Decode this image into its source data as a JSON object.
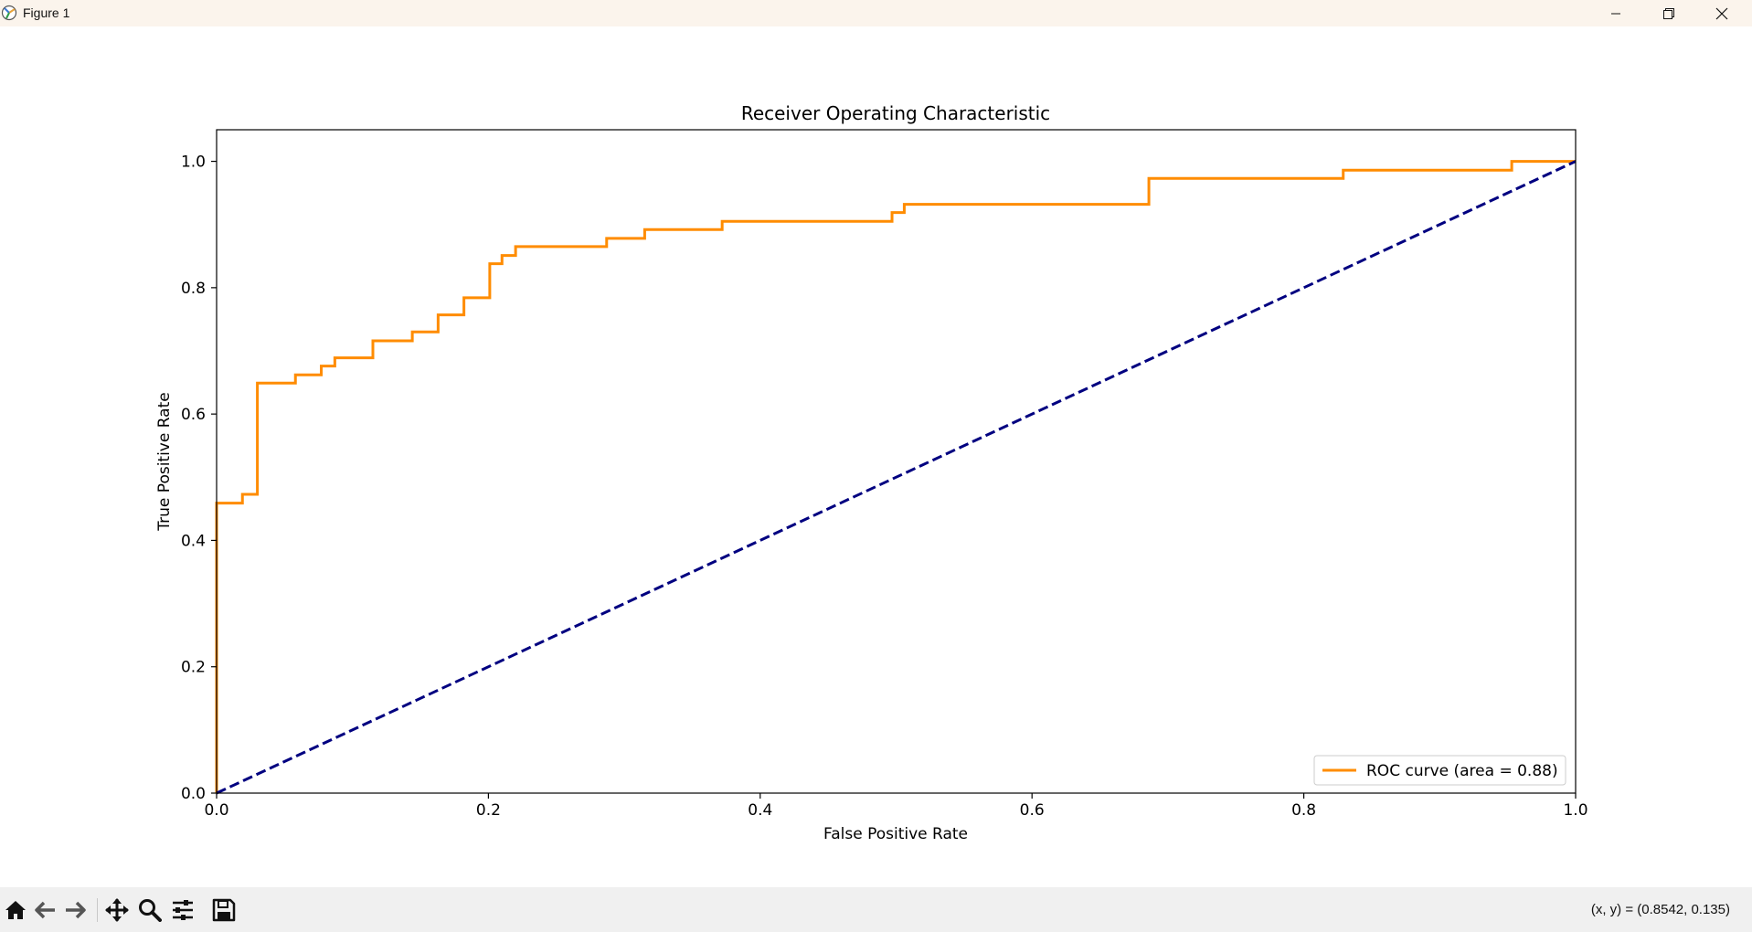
{
  "window": {
    "title": "Figure 1",
    "controls": [
      "minimize",
      "restore",
      "close"
    ]
  },
  "chart_data": {
    "type": "line",
    "title": "Receiver Operating Characteristic",
    "xlabel": "False Positive Rate",
    "ylabel": "True Positive Rate",
    "xlim": [
      0.0,
      1.0
    ],
    "ylim": [
      0.0,
      1.05
    ],
    "xticks": [
      "0.0",
      "0.2",
      "0.4",
      "0.6",
      "0.8",
      "1.0"
    ],
    "yticks": [
      "0.0",
      "0.2",
      "0.4",
      "0.6",
      "0.8",
      "1.0"
    ],
    "grid": false,
    "legend_position": "lower right",
    "series": [
      {
        "name": "ROC curve (area = 0.88)",
        "color": "#ff8c00",
        "style": "step",
        "x": [
          0.0,
          0.0,
          0.019,
          0.019,
          0.03,
          0.03,
          0.058,
          0.058,
          0.077,
          0.077,
          0.087,
          0.087,
          0.115,
          0.115,
          0.144,
          0.144,
          0.163,
          0.163,
          0.182,
          0.182,
          0.201,
          0.201,
          0.21,
          0.21,
          0.22,
          0.22,
          0.287,
          0.287,
          0.315,
          0.315,
          0.372,
          0.372,
          0.497,
          0.497,
          0.506,
          0.506,
          0.686,
          0.686,
          0.829,
          0.829,
          0.953,
          0.953,
          1.0
        ],
        "y": [
          0.0,
          0.459,
          0.459,
          0.473,
          0.473,
          0.649,
          0.649,
          0.662,
          0.662,
          0.676,
          0.676,
          0.689,
          0.689,
          0.716,
          0.716,
          0.73,
          0.73,
          0.757,
          0.757,
          0.784,
          0.784,
          0.838,
          0.838,
          0.851,
          0.851,
          0.865,
          0.865,
          0.878,
          0.878,
          0.892,
          0.892,
          0.905,
          0.905,
          0.919,
          0.919,
          0.932,
          0.932,
          0.973,
          0.973,
          0.986,
          0.986,
          1.0,
          1.0
        ]
      },
      {
        "name": "",
        "color": "#000080",
        "style": "dashed",
        "x": [
          0.0,
          1.0
        ],
        "y": [
          0.0,
          1.0
        ]
      }
    ]
  },
  "toolbar": {
    "tools": [
      "home-icon",
      "back-icon",
      "forward-icon",
      "pan-icon",
      "zoom-icon",
      "configure-subplots-icon",
      "save-icon"
    ],
    "coords_text": "(x, y) = (0.8542, 0.135)"
  }
}
